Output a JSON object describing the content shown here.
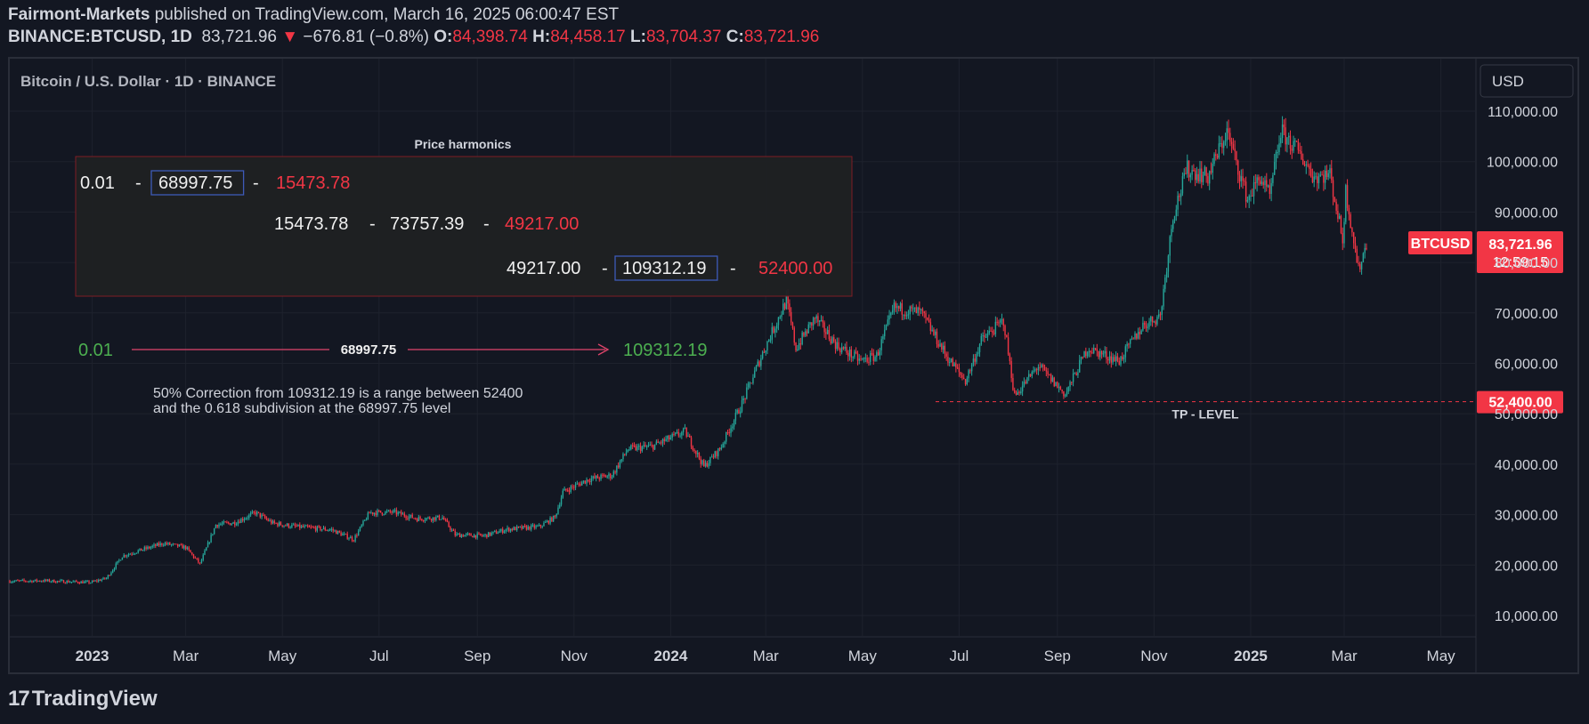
{
  "header": {
    "publisher": "Fairmont-Markets",
    "published_text": "published on TradingView.com, March 16, 2025 06:00:47 EST",
    "symbol": "BINANCE:BTCUSD, 1D",
    "last": "83,721.96",
    "change_arrow": "▼",
    "change": "−676.81 (−0.8%)",
    "o_label": "O:",
    "o": "84,398.74",
    "h_label": "H:",
    "h": "84,458.17",
    "l_label": "L:",
    "l": "83,704.37",
    "c_label": "C:",
    "c": "83,721.96"
  },
  "legend_title": "Bitcoin / U.S. Dollar · 1D · BINANCE",
  "currency_button": "USD",
  "harmonics": {
    "title": "Price harmonics",
    "row1": [
      "0.01",
      "-",
      "68997.75",
      "-",
      "15473.78"
    ],
    "row2": [
      "15473.78",
      "-",
      "73757.39",
      "-",
      "49217.00"
    ],
    "row3": [
      "49217.00",
      "-",
      "109312.19",
      "-",
      "52400.00"
    ]
  },
  "range_line": {
    "start": "0.01",
    "mid": "68997.75",
    "end": "109312.19"
  },
  "note_lines": [
    "50% Correction from 109312.19 is a range between 52400",
    "and the 0.618 subdivision at the 68997.75 level"
  ],
  "tp_label": "TP - LEVEL",
  "price_tag": {
    "symbol": "BTCUSD",
    "price": "83,721.96",
    "countdown": "12:59:15"
  },
  "tp_tag": "52,400.00",
  "logo_text": "TradingView",
  "colors": {
    "background": "#131722",
    "grid": "#1e222d",
    "up": "#26a69a",
    "down": "#f23645",
    "text": "#d1d4dc",
    "green_text": "#4caf50",
    "red_text": "#f23645",
    "box_border": "#7f1d24"
  },
  "chart_data": {
    "type": "candlestick",
    "title": "Bitcoin / U.S. Dollar · 1D · BINANCE",
    "y_ticks": [
      "110,000.00",
      "100,000.00",
      "90,000.00",
      "80,000.00",
      "70,000.00",
      "60,000.00",
      "50,000.00",
      "40,000.00",
      "30,000.00",
      "20,000.00",
      "10,000.00"
    ],
    "y_tick_values": [
      110000,
      100000,
      90000,
      80000,
      70000,
      60000,
      50000,
      40000,
      30000,
      20000,
      10000
    ],
    "x_ticks": [
      "2023",
      "Mar",
      "May",
      "Jul",
      "Sep",
      "Nov",
      "2024",
      "Mar",
      "May",
      "Jul",
      "Sep",
      "Nov",
      "2025",
      "Mar",
      "May"
    ],
    "x_tick_dates": [
      "2023-01-01",
      "2023-03-01",
      "2023-05-01",
      "2023-07-01",
      "2023-09-01",
      "2023-11-01",
      "2024-01-01",
      "2024-03-01",
      "2024-05-01",
      "2024-07-01",
      "2024-09-01",
      "2024-11-01",
      "2025-01-01",
      "2025-03-01",
      "2025-05-01"
    ],
    "ylim": [
      2000,
      112000
    ],
    "xlim": [
      "2022-11-10",
      "2025-05-22"
    ],
    "tp_level": 52400,
    "close_series": [
      [
        "2022-11-10",
        16800
      ],
      [
        "2022-12-01",
        16900
      ],
      [
        "2022-12-31",
        16550
      ],
      [
        "2023-01-10",
        17400
      ],
      [
        "2023-01-20",
        21800
      ],
      [
        "2023-02-01",
        23000
      ],
      [
        "2023-02-15",
        24300
      ],
      [
        "2023-03-01",
        23500
      ],
      [
        "2023-03-10",
        20200
      ],
      [
        "2023-03-20",
        28000
      ],
      [
        "2023-04-01",
        28400
      ],
      [
        "2023-04-14",
        30400
      ],
      [
        "2023-04-25",
        28300
      ],
      [
        "2023-05-10",
        27600
      ],
      [
        "2023-06-01",
        27000
      ],
      [
        "2023-06-15",
        25100
      ],
      [
        "2023-06-25",
        30400
      ],
      [
        "2023-07-10",
        30500
      ],
      [
        "2023-07-25",
        29200
      ],
      [
        "2023-08-10",
        29400
      ],
      [
        "2023-08-18",
        26000
      ],
      [
        "2023-09-05",
        25800
      ],
      [
        "2023-09-20",
        27100
      ],
      [
        "2023-10-10",
        27600
      ],
      [
        "2023-10-20",
        29500
      ],
      [
        "2023-10-25",
        34500
      ],
      [
        "2023-11-10",
        37000
      ],
      [
        "2023-11-25",
        37800
      ],
      [
        "2023-12-05",
        43000
      ],
      [
        "2023-12-20",
        43500
      ],
      [
        "2024-01-10",
        46500
      ],
      [
        "2024-01-22",
        39500
      ],
      [
        "2024-02-01",
        43000
      ],
      [
        "2024-02-15",
        52000
      ],
      [
        "2024-02-28",
        62000
      ],
      [
        "2024-03-14",
        72500
      ],
      [
        "2024-03-20",
        63000
      ],
      [
        "2024-04-01",
        69000
      ],
      [
        "2024-04-15",
        63500
      ],
      [
        "2024-04-30",
        60500
      ],
      [
        "2024-05-10",
        61500
      ],
      [
        "2024-05-21",
        71000
      ],
      [
        "2024-06-07",
        70000
      ],
      [
        "2024-06-24",
        61000
      ],
      [
        "2024-07-05",
        56500
      ],
      [
        "2024-07-15",
        64500
      ],
      [
        "2024-07-29",
        68500
      ],
      [
        "2024-08-05",
        53500
      ],
      [
        "2024-08-20",
        59500
      ],
      [
        "2024-09-06",
        53800
      ],
      [
        "2024-09-20",
        63000
      ],
      [
        "2024-10-10",
        60500
      ],
      [
        "2024-10-25",
        67500
      ],
      [
        "2024-11-05",
        69500
      ],
      [
        "2024-11-13",
        89500
      ],
      [
        "2024-11-22",
        98500
      ],
      [
        "2024-12-05",
        97000
      ],
      [
        "2024-12-17",
        106000
      ],
      [
        "2024-12-30",
        92500
      ],
      [
        "2025-01-07",
        97000
      ],
      [
        "2025-01-13",
        93000
      ],
      [
        "2025-01-20",
        106000
      ],
      [
        "2025-01-31",
        102000
      ],
      [
        "2025-02-10",
        97000
      ],
      [
        "2025-02-20",
        97500
      ],
      [
        "2025-02-28",
        84500
      ],
      [
        "2025-03-02",
        94200
      ],
      [
        "2025-03-10",
        78500
      ],
      [
        "2025-03-15",
        83722
      ]
    ]
  }
}
